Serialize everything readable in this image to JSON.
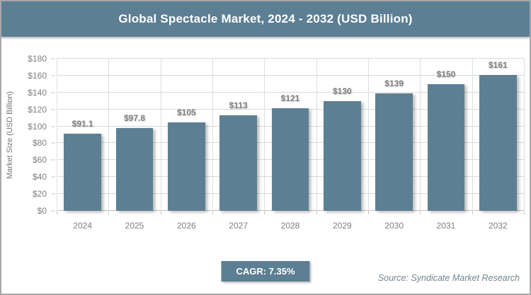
{
  "header": {
    "title": "Global Spectacle Market, 2024 - 2032 (USD Billion)"
  },
  "chart_data": {
    "type": "bar",
    "title": "Global Spectacle Market, 2024 - 2032 (USD Billion)",
    "categories": [
      "2024",
      "2025",
      "2026",
      "2027",
      "2028",
      "2029",
      "2030",
      "2031",
      "2032"
    ],
    "values": [
      91.1,
      97.8,
      105,
      113,
      121,
      130,
      139,
      150,
      161
    ],
    "bar_labels": [
      "$91.1",
      "$97.8",
      "$105",
      "$113",
      "$121",
      "$130",
      "$139",
      "$150",
      "$161"
    ],
    "xlabel": "",
    "ylabel": "Market Size (USD Billion)",
    "ylim": [
      0,
      180
    ],
    "ytick_values": [
      0,
      20,
      40,
      60,
      80,
      100,
      120,
      140,
      160,
      180
    ],
    "ytick_labels": [
      "$0",
      "$20",
      "$40",
      "$60",
      "$80",
      "$100",
      "$120",
      "$140",
      "$160",
      "$180"
    ],
    "grid": "horizontal and vertical light gray",
    "legend_position": "none"
  },
  "footer": {
    "cagr_label": "CAGR: 7.35%",
    "source": "Source: Syndicate Market Research"
  },
  "colors": {
    "accent": "#5d7f93",
    "bar": "#5d7f93",
    "title_text": "#ffffff",
    "axis_text": "#7f7f7f",
    "gridline": "#dadada",
    "source_text": "#708694",
    "frame_border": "#a8a8a8"
  }
}
